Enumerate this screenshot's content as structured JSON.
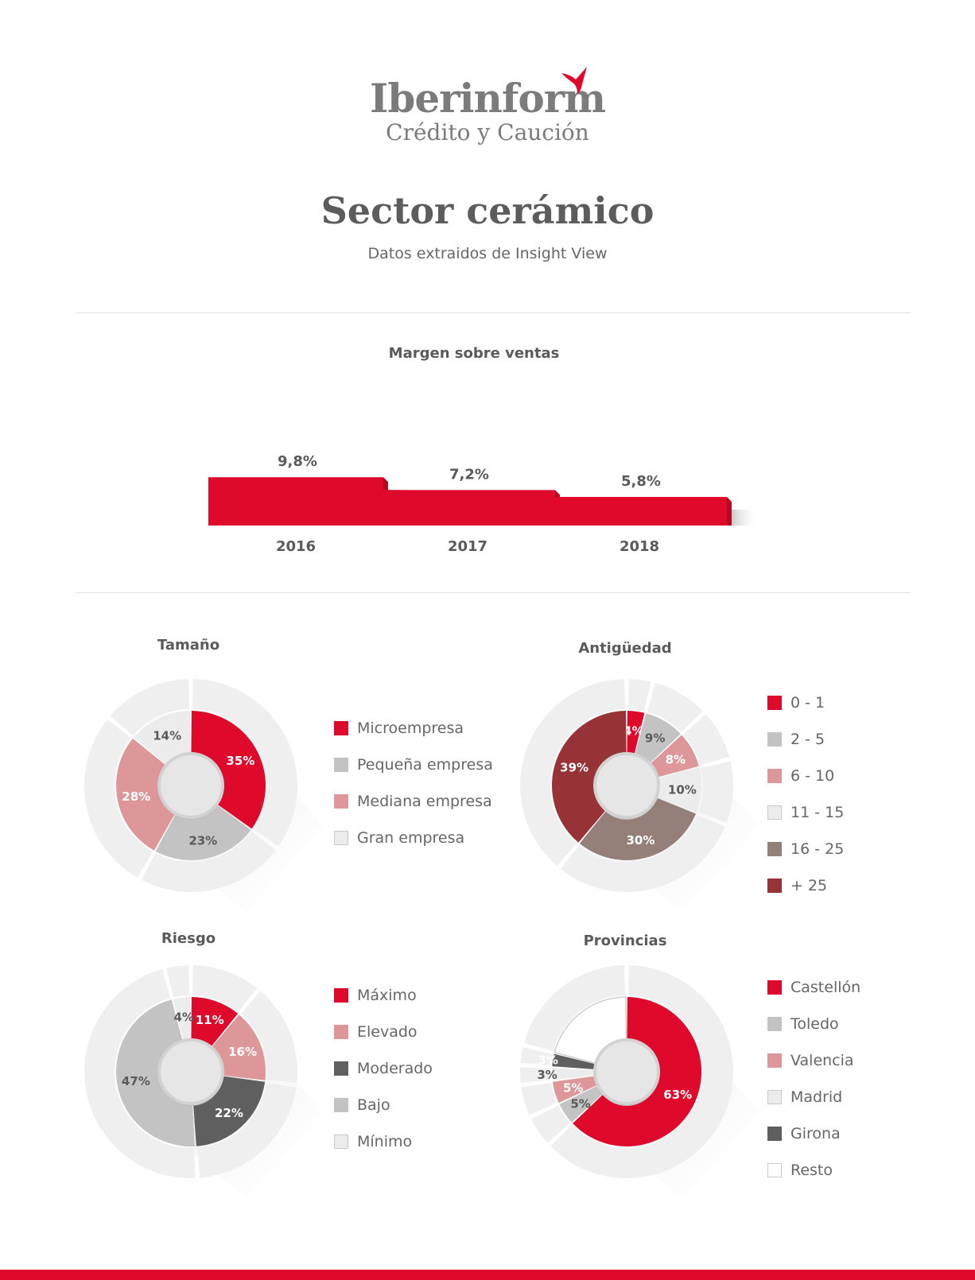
{
  "header": {
    "logo_name": "Iberinform",
    "logo_subtitle": "Crédito y Caución",
    "title": "Sector cerámico",
    "subtitle": "Datos extraidos de Insight View"
  },
  "colors": {
    "red": "#df0a2b",
    "gray": "#c3c3c3",
    "pink": "#dd9799",
    "light": "#ececec",
    "taupe": "#948079",
    "maroon": "#973236",
    "dark": "#5f5f5f",
    "white": "#ffffff"
  },
  "chart_data": [
    {
      "id": "margen",
      "type": "bar",
      "title": "Margen sobre ventas",
      "categories": [
        "2016",
        "2017",
        "2018"
      ],
      "values": [
        9.8,
        7.2,
        5.8
      ],
      "value_labels": [
        "9,8%",
        "7,2%",
        "5,8%"
      ],
      "color": "#df0a2b"
    },
    {
      "id": "tamano",
      "type": "pie",
      "title": "Tamaño",
      "labels": [
        "Microempresa",
        "Pequeña empresa",
        "Mediana empresa",
        "Gran empresa"
      ],
      "values": [
        35,
        23,
        28,
        14
      ],
      "value_labels": [
        "35%",
        "23%",
        "28%",
        "14%"
      ],
      "colors": [
        "#df0a2b",
        "#c3c3c3",
        "#dd9799",
        "#ececec"
      ]
    },
    {
      "id": "antiguedad",
      "type": "pie",
      "title": "Antigüedad",
      "labels": [
        "0 - 1",
        "2 - 5",
        "6 - 10",
        "11 - 15",
        "16 - 25",
        "+ 25"
      ],
      "values": [
        4,
        9,
        8,
        10,
        30,
        39
      ],
      "value_labels": [
        "4%",
        "9%",
        "8%",
        "10%",
        "30%",
        "39%"
      ],
      "colors": [
        "#df0a2b",
        "#c3c3c3",
        "#dd9799",
        "#ececec",
        "#948079",
        "#973236"
      ]
    },
    {
      "id": "riesgo",
      "type": "pie",
      "title": "Riesgo",
      "labels": [
        "Máximo",
        "Elevado",
        "Moderado",
        "Bajo",
        "Mínimo"
      ],
      "values": [
        11,
        16,
        22,
        47,
        4
      ],
      "value_labels": [
        "11%",
        "16%",
        "22%",
        "47%",
        "4%"
      ],
      "colors": [
        "#df0a2b",
        "#dd9799",
        "#5f5f5f",
        "#c3c3c3",
        "#ececec"
      ]
    },
    {
      "id": "provincias",
      "type": "pie",
      "title": "Provincias",
      "labels": [
        "Castellón",
        "Toledo",
        "Valencia",
        "Madrid",
        "Girona",
        "Resto"
      ],
      "values": [
        63,
        5,
        5,
        3,
        3,
        21
      ],
      "value_labels": [
        "63%",
        "5%",
        "5%",
        "3%",
        "3%",
        ""
      ],
      "colors": [
        "#df0a2b",
        "#c3c3c3",
        "#dd9799",
        "#ececec",
        "#5f5f5f",
        "#ffffff"
      ]
    }
  ]
}
